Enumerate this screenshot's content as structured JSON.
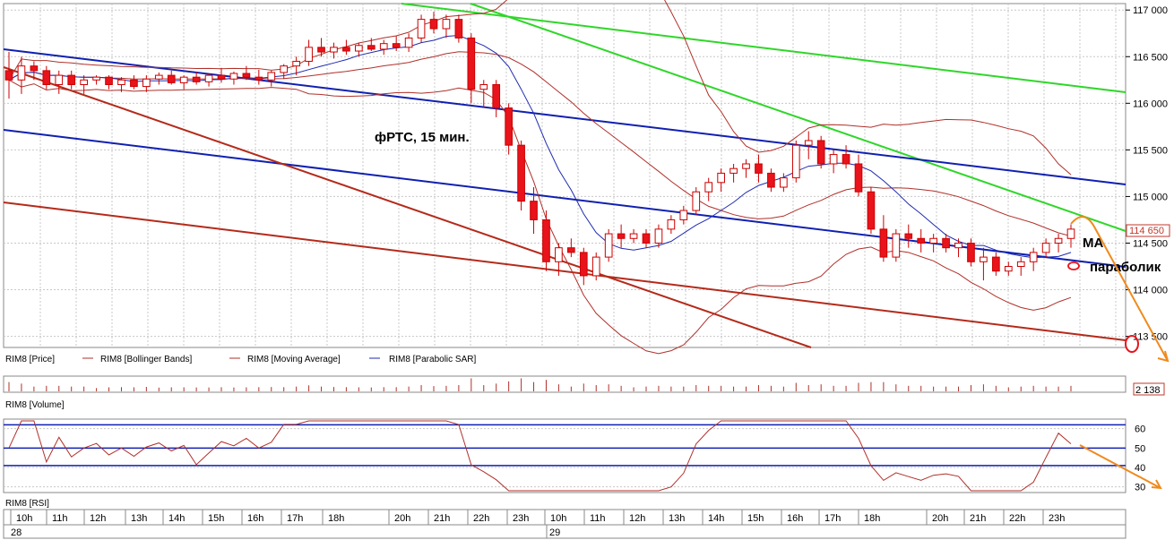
{
  "chart_data": {
    "type": "candlestick",
    "title": "фРТС, 15 мин.",
    "annotations": {
      "ma": "MA",
      "parabolic": "параболик"
    },
    "price_panel": {
      "ylim": [
        113400,
        117050
      ],
      "y_ticks": [
        "117 000",
        "116 500",
        "116 000",
        "115 500",
        "115 000",
        "114 500",
        "114 000",
        "113 500"
      ],
      "y_tick_values": [
        117000,
        116500,
        116000,
        115500,
        115000,
        114500,
        114000,
        113500
      ],
      "last_price_label": "114 650",
      "last_price": 114650,
      "legend": [
        "RIM8 [Price]",
        "RIM8 [Bollinger Bands]",
        "RIM8 [Moving Average]",
        "RIM8 [Parabolic SAR]"
      ],
      "colors": {
        "up": "#ffffff",
        "down": "#e8131b",
        "candle_edge": "#cc0000",
        "bands": "#b0302a",
        "sar": "#1f2bb0",
        "green": "#2fd629",
        "blue": "#1020b0",
        "red": "#b42a1a",
        "orange": "#f08a1c",
        "grid": "#c8c8c8"
      },
      "candles": [
        {
          "o": 116350,
          "h": 116550,
          "l": 116050,
          "c": 116250
        },
        {
          "o": 116250,
          "h": 116500,
          "l": 116100,
          "c": 116400
        },
        {
          "o": 116400,
          "h": 116450,
          "l": 116250,
          "c": 116350
        },
        {
          "o": 116350,
          "h": 116400,
          "l": 116150,
          "c": 116200
        },
        {
          "o": 116200,
          "h": 116350,
          "l": 116100,
          "c": 116300
        },
        {
          "o": 116300,
          "h": 116350,
          "l": 116150,
          "c": 116200
        },
        {
          "o": 116200,
          "h": 116300,
          "l": 116100,
          "c": 116250
        },
        {
          "o": 116250,
          "h": 116300,
          "l": 116200,
          "c": 116280
        },
        {
          "o": 116280,
          "h": 116300,
          "l": 116150,
          "c": 116200
        },
        {
          "o": 116200,
          "h": 116280,
          "l": 116120,
          "c": 116250
        },
        {
          "o": 116250,
          "h": 116300,
          "l": 116150,
          "c": 116180
        },
        {
          "o": 116180,
          "h": 116300,
          "l": 116120,
          "c": 116260
        },
        {
          "o": 116260,
          "h": 116330,
          "l": 116200,
          "c": 116300
        },
        {
          "o": 116300,
          "h": 116350,
          "l": 116200,
          "c": 116220
        },
        {
          "o": 116220,
          "h": 116300,
          "l": 116150,
          "c": 116280
        },
        {
          "o": 116280,
          "h": 116340,
          "l": 116200,
          "c": 116230
        },
        {
          "o": 116230,
          "h": 116320,
          "l": 116180,
          "c": 116300
        },
        {
          "o": 116300,
          "h": 116380,
          "l": 116220,
          "c": 116260
        },
        {
          "o": 116260,
          "h": 116340,
          "l": 116200,
          "c": 116320
        },
        {
          "o": 116320,
          "h": 116400,
          "l": 116250,
          "c": 116280
        },
        {
          "o": 116280,
          "h": 116360,
          "l": 116200,
          "c": 116250
        },
        {
          "o": 116250,
          "h": 116350,
          "l": 116180,
          "c": 116330
        },
        {
          "o": 116330,
          "h": 116420,
          "l": 116260,
          "c": 116400
        },
        {
          "o": 116400,
          "h": 116500,
          "l": 116300,
          "c": 116450
        },
        {
          "o": 116450,
          "h": 116680,
          "l": 116400,
          "c": 116600
        },
        {
          "o": 116600,
          "h": 116700,
          "l": 116500,
          "c": 116550
        },
        {
          "o": 116550,
          "h": 116650,
          "l": 116480,
          "c": 116600
        },
        {
          "o": 116600,
          "h": 116680,
          "l": 116520,
          "c": 116560
        },
        {
          "o": 116560,
          "h": 116650,
          "l": 116500,
          "c": 116620
        },
        {
          "o": 116620,
          "h": 116700,
          "l": 116560,
          "c": 116580
        },
        {
          "o": 116580,
          "h": 116680,
          "l": 116520,
          "c": 116640
        },
        {
          "o": 116640,
          "h": 116720,
          "l": 116560,
          "c": 116600
        },
        {
          "o": 116600,
          "h": 116750,
          "l": 116550,
          "c": 116700
        },
        {
          "o": 116700,
          "h": 116950,
          "l": 116650,
          "c": 116900
        },
        {
          "o": 116900,
          "h": 116980,
          "l": 116750,
          "c": 116800
        },
        {
          "o": 116800,
          "h": 116950,
          "l": 116700,
          "c": 116900
        },
        {
          "o": 116900,
          "h": 116950,
          "l": 116650,
          "c": 116700
        },
        {
          "o": 116700,
          "h": 116750,
          "l": 116000,
          "c": 116150
        },
        {
          "o": 116150,
          "h": 116250,
          "l": 115950,
          "c": 116200
        },
        {
          "o": 116200,
          "h": 116250,
          "l": 115850,
          "c": 115950
        },
        {
          "o": 115950,
          "h": 116000,
          "l": 115450,
          "c": 115550
        },
        {
          "o": 115550,
          "h": 115600,
          "l": 114850,
          "c": 114950
        },
        {
          "o": 114950,
          "h": 115100,
          "l": 114600,
          "c": 114750
        },
        {
          "o": 114750,
          "h": 114850,
          "l": 114200,
          "c": 114300
        },
        {
          "o": 114300,
          "h": 114500,
          "l": 114150,
          "c": 114450
        },
        {
          "o": 114450,
          "h": 114550,
          "l": 114350,
          "c": 114400
        },
        {
          "o": 114400,
          "h": 114450,
          "l": 114050,
          "c": 114150
        },
        {
          "o": 114150,
          "h": 114400,
          "l": 114100,
          "c": 114350
        },
        {
          "o": 114350,
          "h": 114650,
          "l": 114300,
          "c": 114600
        },
        {
          "o": 114600,
          "h": 114700,
          "l": 114450,
          "c": 114550
        },
        {
          "o": 114550,
          "h": 114650,
          "l": 114500,
          "c": 114600
        },
        {
          "o": 114600,
          "h": 114650,
          "l": 114450,
          "c": 114500
        },
        {
          "o": 114500,
          "h": 114700,
          "l": 114450,
          "c": 114650
        },
        {
          "o": 114650,
          "h": 114800,
          "l": 114600,
          "c": 114750
        },
        {
          "o": 114750,
          "h": 114900,
          "l": 114700,
          "c": 114850
        },
        {
          "o": 114850,
          "h": 115100,
          "l": 114800,
          "c": 115050
        },
        {
          "o": 115050,
          "h": 115200,
          "l": 114950,
          "c": 115150
        },
        {
          "o": 115150,
          "h": 115300,
          "l": 115050,
          "c": 115250
        },
        {
          "o": 115250,
          "h": 115350,
          "l": 115150,
          "c": 115300
        },
        {
          "o": 115300,
          "h": 115400,
          "l": 115200,
          "c": 115350
        },
        {
          "o": 115350,
          "h": 115450,
          "l": 115150,
          "c": 115250
        },
        {
          "o": 115250,
          "h": 115300,
          "l": 115050,
          "c": 115100
        },
        {
          "o": 115100,
          "h": 115250,
          "l": 115050,
          "c": 115200
        },
        {
          "o": 115200,
          "h": 115600,
          "l": 115150,
          "c": 115550
        },
        {
          "o": 115550,
          "h": 115700,
          "l": 115400,
          "c": 115600
        },
        {
          "o": 115600,
          "h": 115650,
          "l": 115300,
          "c": 115350
        },
        {
          "o": 115350,
          "h": 115500,
          "l": 115250,
          "c": 115450
        },
        {
          "o": 115450,
          "h": 115550,
          "l": 115300,
          "c": 115350
        },
        {
          "o": 115350,
          "h": 115450,
          "l": 115000,
          "c": 115050
        },
        {
          "o": 115050,
          "h": 115100,
          "l": 114600,
          "c": 114650
        },
        {
          "o": 114650,
          "h": 114800,
          "l": 114300,
          "c": 114350
        },
        {
          "o": 114350,
          "h": 114650,
          "l": 114300,
          "c": 114600
        },
        {
          "o": 114600,
          "h": 114700,
          "l": 114450,
          "c": 114550
        },
        {
          "o": 114550,
          "h": 114650,
          "l": 114400,
          "c": 114500
        },
        {
          "o": 114500,
          "h": 114600,
          "l": 114400,
          "c": 114550
        },
        {
          "o": 114550,
          "h": 114600,
          "l": 114400,
          "c": 114450
        },
        {
          "o": 114450,
          "h": 114550,
          "l": 114350,
          "c": 114500
        },
        {
          "o": 114500,
          "h": 114550,
          "l": 114250,
          "c": 114300
        },
        {
          "o": 114300,
          "h": 114450,
          "l": 114100,
          "c": 114350
        },
        {
          "o": 114350,
          "h": 114400,
          "l": 114150,
          "c": 114200
        },
        {
          "o": 114200,
          "h": 114300,
          "l": 114150,
          "c": 114250
        },
        {
          "o": 114250,
          "h": 114350,
          "l": 114150,
          "c": 114300
        },
        {
          "o": 114300,
          "h": 114450,
          "l": 114200,
          "c": 114400
        },
        {
          "o": 114400,
          "h": 114550,
          "l": 114350,
          "c": 114500
        },
        {
          "o": 114500,
          "h": 114600,
          "l": 114400,
          "c": 114550
        },
        {
          "o": 114550,
          "h": 114700,
          "l": 114450,
          "c": 114650
        }
      ]
    },
    "volume_panel": {
      "label": "RIM8 [Volume]",
      "last_value": "2 138"
    },
    "rsi_panel": {
      "label": "RIM8 [RSI]",
      "ylim": [
        28,
        64
      ],
      "y_ticks": [
        "60",
        "50",
        "40",
        "30"
      ],
      "y_tick_values": [
        60,
        50,
        40,
        30
      ],
      "levels": [
        62,
        50,
        41
      ]
    },
    "time_axis": {
      "labels": [
        "10h",
        "11h",
        "12h",
        "13h",
        "14h",
        "15h",
        "16h",
        "17h",
        "18h",
        "20h",
        "21h",
        "22h",
        "23h",
        "10h",
        "11h",
        "12h",
        "13h",
        "14h",
        "15h",
        "16h",
        "17h",
        "18h",
        "20h",
        "21h",
        "22h",
        "23h"
      ],
      "dates": [
        "28",
        "29"
      ]
    }
  }
}
